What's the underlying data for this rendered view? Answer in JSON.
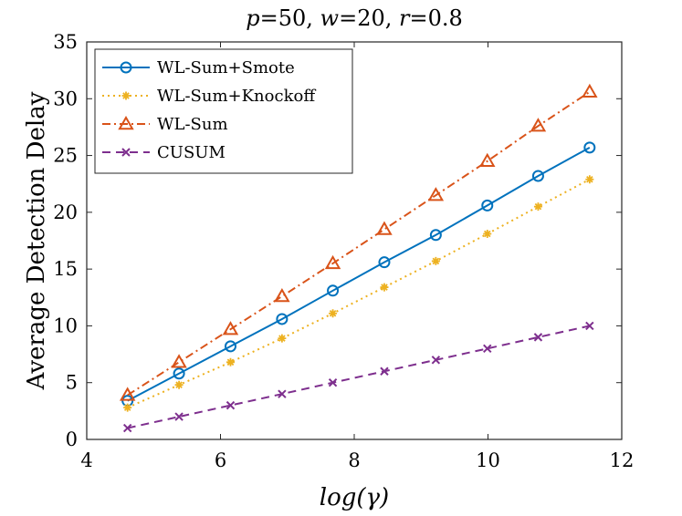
{
  "chart_data": {
    "type": "line",
    "title": "p=50, w=20, r=0.8",
    "title_parts": [
      {
        "text": "p",
        "italic": true
      },
      {
        "text": "=50, ",
        "italic": false
      },
      {
        "text": "w",
        "italic": true
      },
      {
        "text": "=20, ",
        "italic": false
      },
      {
        "text": "r",
        "italic": true
      },
      {
        "text": "=0.8",
        "italic": false
      }
    ],
    "xlabel": "log(γ)",
    "ylabel": "Average Detection Delay",
    "xlim": [
      4,
      12
    ],
    "ylim": [
      0,
      35
    ],
    "xticks": [
      4,
      6,
      8,
      10,
      12
    ],
    "yticks": [
      0,
      5,
      10,
      15,
      20,
      25,
      30,
      35
    ],
    "grid": false,
    "legend_position": "top-left",
    "x": [
      4.61,
      5.38,
      6.15,
      6.92,
      7.68,
      8.45,
      9.22,
      9.99,
      10.75,
      11.52
    ],
    "series": [
      {
        "name": "WL-Sum+Smote",
        "color": "#0072BD",
        "dash": "solid",
        "marker": "circle",
        "values": [
          3.4,
          5.8,
          8.2,
          10.6,
          13.1,
          15.6,
          18.0,
          20.6,
          23.2,
          25.7
        ]
      },
      {
        "name": "WL-Sum+Knockoff",
        "color": "#EDB120",
        "dash": "dotted",
        "marker": "star",
        "values": [
          2.8,
          4.8,
          6.8,
          8.9,
          11.1,
          13.4,
          15.7,
          18.1,
          20.5,
          22.9
        ]
      },
      {
        "name": "WL-Sum",
        "color": "#D95319",
        "dash": "dashdot",
        "marker": "triangle",
        "values": [
          3.9,
          6.8,
          9.7,
          12.6,
          15.5,
          18.5,
          21.5,
          24.5,
          27.6,
          30.6
        ]
      },
      {
        "name": "CUSUM",
        "color": "#7E2F8E",
        "dash": "dashed",
        "marker": "x",
        "values": [
          1.0,
          2.0,
          3.0,
          4.0,
          5.0,
          6.0,
          7.0,
          8.0,
          9.0,
          10.0
        ]
      }
    ]
  }
}
